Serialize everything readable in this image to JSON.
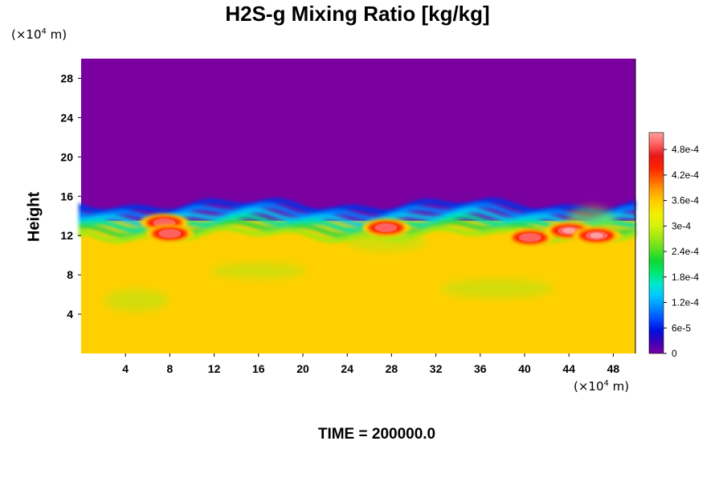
{
  "chart_data": {
    "type": "heatmap",
    "title": "H2S-g Mixing Ratio [kg/kg]",
    "ylabel": "Height",
    "y_unit_prefix": "(×10",
    "y_unit_exp": "4",
    "y_unit_suffix": " m)",
    "x_unit_prefix": "(×10",
    "x_unit_exp": "4",
    "x_unit_suffix": " m)",
    "time_label": "TIME = 200000.0",
    "xlim": [
      0,
      50
    ],
    "ylim": [
      0,
      30
    ],
    "x_ticks": [
      "4",
      "8",
      "12",
      "16",
      "20",
      "24",
      "28",
      "32",
      "36",
      "40",
      "44",
      "48"
    ],
    "y_ticks": [
      "4",
      "8",
      "12",
      "16",
      "20",
      "24",
      "28"
    ],
    "colorbar": {
      "range": [
        0,
        0.00052
      ],
      "tick_labels": [
        "0",
        "6e-5",
        "1.2e-4",
        "1.8e-4",
        "2.4e-4",
        "3e-4",
        "3.6e-4",
        "4.2e-4",
        "4.8e-4"
      ],
      "colors": [
        "#7b00a0",
        "#3a00b8",
        "#0010e0",
        "#0050ff",
        "#0090ff",
        "#00c8ff",
        "#00e8c8",
        "#00e870",
        "#10d830",
        "#60e020",
        "#a0e810",
        "#d8f010",
        "#f0f000",
        "#ffd000",
        "#ffa000",
        "#ff6000",
        "#ff2000",
        "#e81818",
        "#ff6060",
        "#ffa0a0"
      ]
    },
    "field": {
      "upper_value": 0,
      "lower_value": 0.00036,
      "interface_height": 13.5,
      "pockets": [
        {
          "x": 7.5,
          "y": 13.3,
          "value": 0.0005
        },
        {
          "x": 8.0,
          "y": 12.2,
          "value": 0.00048
        },
        {
          "x": 27.5,
          "y": 12.8,
          "value": 0.0005
        },
        {
          "x": 40.5,
          "y": 11.8,
          "value": 0.0005
        },
        {
          "x": 44.0,
          "y": 12.5,
          "value": 0.00052
        },
        {
          "x": 46.5,
          "y": 12.0,
          "value": 0.00052
        }
      ]
    }
  }
}
